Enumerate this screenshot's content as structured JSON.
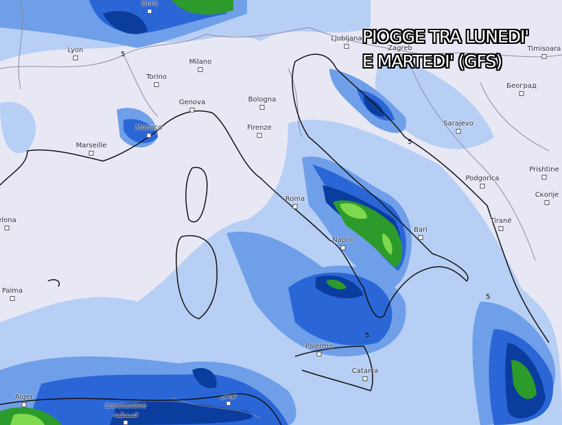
{
  "title": {
    "line1": "PIOGGE TRA LUNEDI'",
    "line2": "E MARTEDI' (GFS)"
  },
  "colors": {
    "background": "#e8e8f5",
    "light_blue": "#b7cff5",
    "mid_blue": "#6f9fe8",
    "blue": "#2a66d6",
    "dark_blue": "#0b3d9e",
    "green": "#2c9b2c",
    "light_green": "#7fd94c"
  },
  "isoline_label": "5",
  "cities": [
    {
      "name": "Bern"
    },
    {
      "name": "Lyon"
    },
    {
      "name": "Milano"
    },
    {
      "name": "Torino"
    },
    {
      "name": "Genova"
    },
    {
      "name": "Bologna"
    },
    {
      "name": "Firenze"
    },
    {
      "name": "Monaco"
    },
    {
      "name": "Marseille"
    },
    {
      "name": "Ljubljana"
    },
    {
      "name": "Zagreb"
    },
    {
      "name": "Timisoara"
    },
    {
      "name": "Београд"
    },
    {
      "name": "Sarajevo"
    },
    {
      "name": "Podgorica"
    },
    {
      "name": "Prishtine"
    },
    {
      "name": "Скопје"
    },
    {
      "name": "Tiranë"
    },
    {
      "name": "Roma"
    },
    {
      "name": "Bari"
    },
    {
      "name": "Napoli"
    },
    {
      "name": "Palermo"
    },
    {
      "name": "Catania"
    },
    {
      "name": "Alger"
    },
    {
      "name": "Constantine"
    },
    {
      "name": "قسنطينة"
    },
    {
      "name": "تونس"
    },
    {
      "name": "Palma"
    },
    {
      "name": "elona"
    }
  ]
}
